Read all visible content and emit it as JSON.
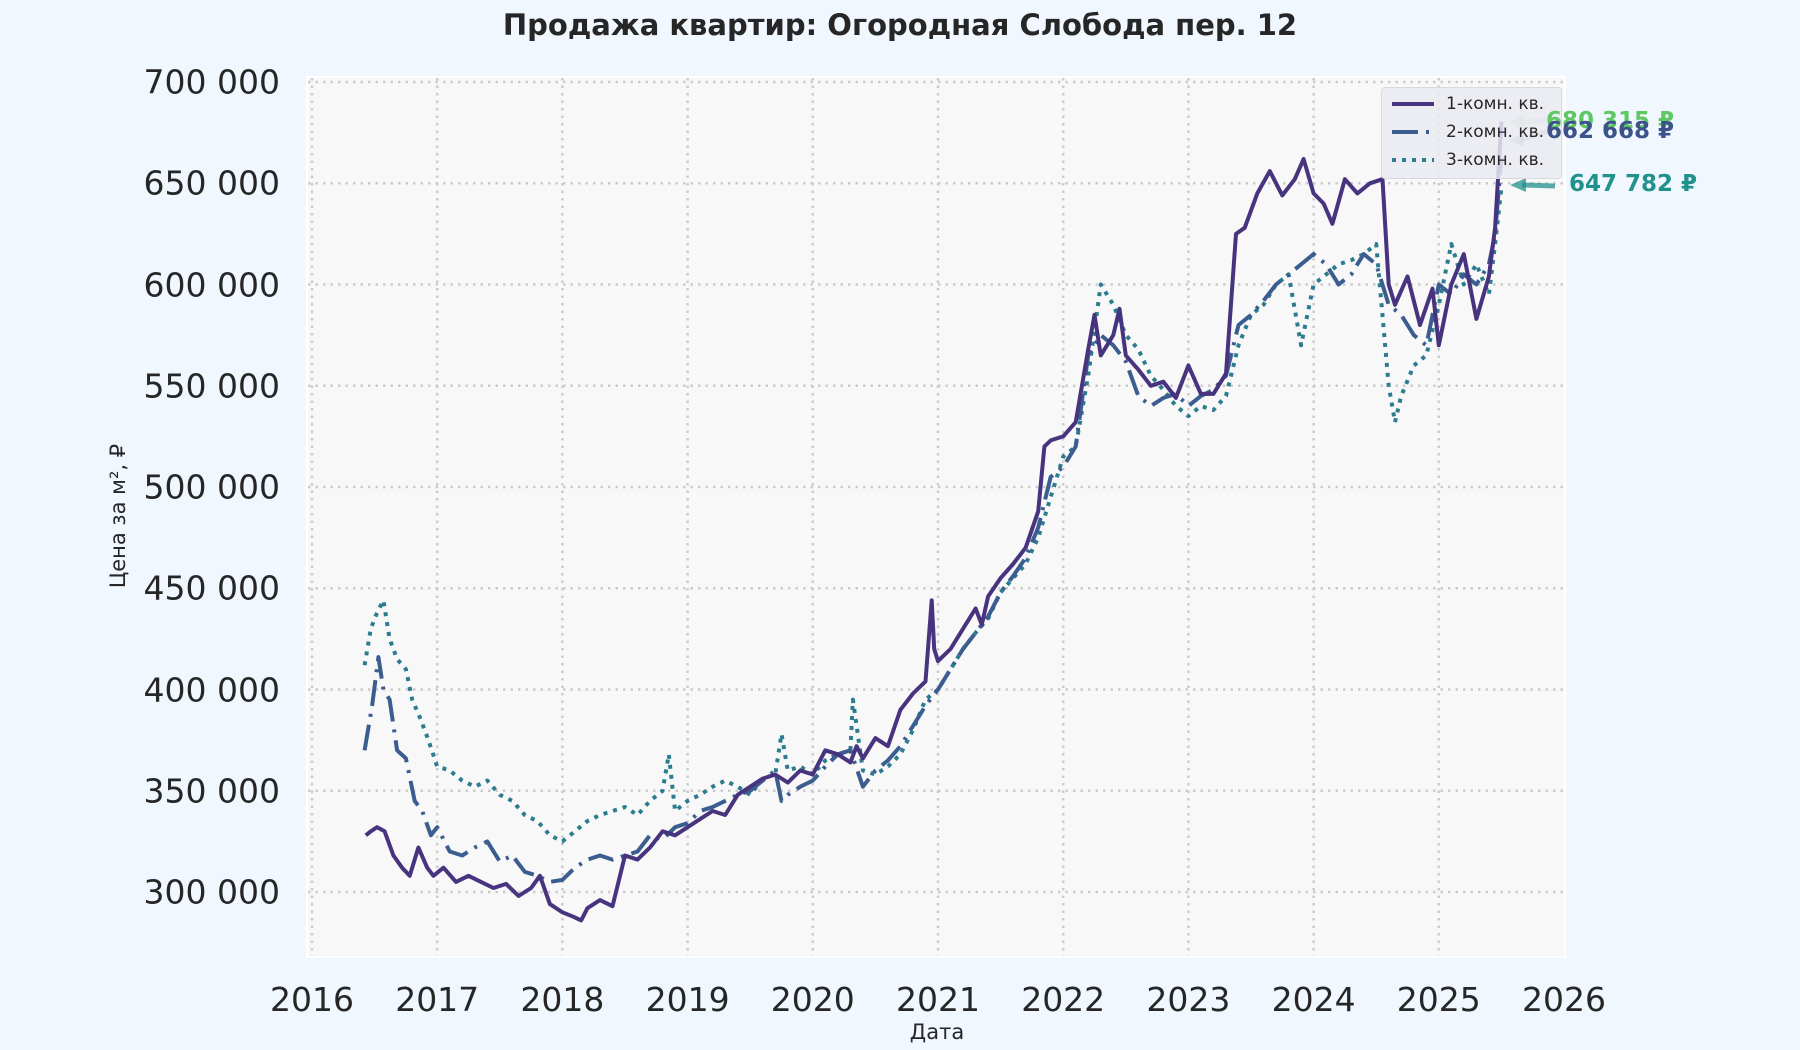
{
  "title": "Продажа квартир: Огородная Слобода пер. 12",
  "colors": {
    "figure_bg": "#f0f7ff",
    "plot_bg": "#f8f8f8",
    "grid": "#cccccc",
    "series_1": "#47337e",
    "series_2": "#3b5d8f",
    "series_3": "#2a7c8e",
    "anno_1": "#5ec962",
    "anno_2": "#3b528b",
    "anno_3": "#21918c"
  },
  "axes": {
    "xlabel": "Дата",
    "ylabel": "Цена за м², ₽",
    "yticks": [
      "700 000",
      "650 000",
      "600 000",
      "550 000",
      "500 000",
      "450 000",
      "400 000",
      "350 000",
      "300 000"
    ],
    "xticks": [
      "2016",
      "2017",
      "2018",
      "2019",
      "2020",
      "2021",
      "2022",
      "2023",
      "2024",
      "2025",
      "2026"
    ]
  },
  "legend": {
    "items": [
      "1-комн. кв.",
      "2-комн. кв.",
      "3-комн. кв."
    ]
  },
  "annotations": [
    {
      "label": "680 315 ₽",
      "series": "1-комн. кв."
    },
    {
      "label": "662 668 ₽",
      "series": "2-комн. кв."
    },
    {
      "label": "647 782 ₽",
      "series": "3-комн. кв."
    }
  ],
  "chart_data": {
    "type": "line",
    "title": "Продажа квартир: Огородная Слобода пер. 12",
    "xlabel": "Дата",
    "ylabel": "Цена за м², ₽",
    "xlim": [
      2016,
      2026
    ],
    "ylim": [
      265000,
      700000
    ],
    "grid": true,
    "legend_position": "upper right",
    "series": [
      {
        "name": "1-комн. кв.",
        "style": "solid",
        "x": [
          2016.43,
          2016.47,
          2016.52,
          2016.58,
          2016.65,
          2016.72,
          2016.78,
          2016.85,
          2016.92,
          2016.97,
          2017.05,
          2017.15,
          2017.25,
          2017.35,
          2017.45,
          2017.55,
          2017.65,
          2017.75,
          2017.82,
          2017.9,
          2018.0,
          2018.08,
          2018.15,
          2018.2,
          2018.3,
          2018.4,
          2018.5,
          2018.6,
          2018.7,
          2018.8,
          2018.9,
          2019.0,
          2019.1,
          2019.2,
          2019.3,
          2019.4,
          2019.5,
          2019.6,
          2019.7,
          2019.8,
          2019.9,
          2020.0,
          2020.1,
          2020.2,
          2020.3,
          2020.35,
          2020.4,
          2020.5,
          2020.6,
          2020.7,
          2020.8,
          2020.9,
          2020.95,
          2020.97,
          2021.0,
          2021.1,
          2021.2,
          2021.3,
          2021.35,
          2021.4,
          2021.5,
          2021.6,
          2021.7,
          2021.8,
          2021.85,
          2021.9,
          2022.0,
          2022.1,
          2022.2,
          2022.25,
          2022.3,
          2022.4,
          2022.45,
          2022.5,
          2022.6,
          2022.7,
          2022.8,
          2022.9,
          2023.0,
          2023.1,
          2023.2,
          2023.3,
          2023.38,
          2023.45,
          2023.55,
          2023.65,
          2023.75,
          2023.85,
          2023.92,
          2024.0,
          2024.08,
          2024.15,
          2024.25,
          2024.35,
          2024.45,
          2024.55,
          2024.6,
          2024.65,
          2024.75,
          2024.85,
          2024.95,
          2025.0,
          2025.1,
          2025.2,
          2025.3,
          2025.4,
          2025.45,
          2025.5
        ],
        "values": [
          328000,
          330000,
          332000,
          330000,
          318000,
          312000,
          308000,
          322000,
          312000,
          308000,
          312000,
          305000,
          308000,
          305000,
          302000,
          304000,
          298000,
          302000,
          308000,
          294000,
          290000,
          288000,
          286000,
          292000,
          296000,
          293000,
          318000,
          316000,
          322000,
          330000,
          328000,
          332000,
          336000,
          340000,
          338000,
          348000,
          352000,
          356000,
          358000,
          354000,
          360000,
          358000,
          370000,
          368000,
          364000,
          372000,
          366000,
          376000,
          372000,
          390000,
          398000,
          404000,
          444000,
          420000,
          414000,
          420000,
          430000,
          440000,
          432000,
          446000,
          455000,
          462000,
          470000,
          488000,
          520000,
          523000,
          525000,
          532000,
          568000,
          585000,
          565000,
          575000,
          588000,
          565000,
          558000,
          550000,
          552000,
          544000,
          560000,
          546000,
          546000,
          556000,
          625000,
          628000,
          645000,
          656000,
          644000,
          652000,
          662000,
          645000,
          640000,
          630000,
          652000,
          645000,
          650000,
          652000,
          600000,
          590000,
          604000,
          580000,
          598000,
          570000,
          600000,
          615000,
          583000,
          604000,
          628000,
          680315
        ]
      },
      {
        "name": "2-комн. кв.",
        "style": "dashdot",
        "x": [
          2016.42,
          2016.48,
          2016.53,
          2016.57,
          2016.62,
          2016.68,
          2016.75,
          2016.82,
          2016.88,
          2016.95,
          2017.0,
          2017.1,
          2017.2,
          2017.3,
          2017.4,
          2017.5,
          2017.6,
          2017.7,
          2017.8,
          2017.9,
          2018.0,
          2018.1,
          2018.2,
          2018.3,
          2018.4,
          2018.5,
          2018.6,
          2018.7,
          2018.8,
          2018.9,
          2019.0,
          2019.1,
          2019.2,
          2019.3,
          2019.4,
          2019.5,
          2019.6,
          2019.7,
          2019.75,
          2019.8,
          2019.9,
          2020.0,
          2020.1,
          2020.2,
          2020.3,
          2020.4,
          2020.5,
          2020.6,
          2020.7,
          2020.8,
          2020.9,
          2021.0,
          2021.1,
          2021.2,
          2021.3,
          2021.4,
          2021.5,
          2021.6,
          2021.7,
          2021.8,
          2021.9,
          2022.0,
          2022.1,
          2022.2,
          2022.3,
          2022.4,
          2022.5,
          2022.6,
          2022.7,
          2022.8,
          2022.9,
          2023.0,
          2023.1,
          2023.2,
          2023.3,
          2023.4,
          2023.5,
          2023.6,
          2023.7,
          2023.8,
          2023.9,
          2024.0,
          2024.1,
          2024.2,
          2024.3,
          2024.4,
          2024.5,
          2024.6,
          2024.7,
          2024.8,
          2024.9,
          2025.0,
          2025.1,
          2025.2,
          2025.3,
          2025.4,
          2025.45,
          2025.5
        ],
        "values": [
          370000,
          392000,
          416000,
          400000,
          395000,
          370000,
          366000,
          345000,
          340000,
          328000,
          332000,
          320000,
          318000,
          322000,
          325000,
          315000,
          318000,
          310000,
          308000,
          305000,
          306000,
          312000,
          316000,
          318000,
          316000,
          318000,
          320000,
          328000,
          326000,
          332000,
          334000,
          340000,
          342000,
          345000,
          348000,
          350000,
          355000,
          360000,
          345000,
          348000,
          352000,
          355000,
          362000,
          368000,
          370000,
          352000,
          360000,
          365000,
          372000,
          382000,
          392000,
          400000,
          410000,
          420000,
          428000,
          436000,
          448000,
          456000,
          465000,
          480000,
          505000,
          510000,
          520000,
          565000,
          575000,
          570000,
          562000,
          545000,
          540000,
          544000,
          546000,
          540000,
          545000,
          548000,
          555000,
          580000,
          585000,
          592000,
          600000,
          605000,
          610000,
          615000,
          610000,
          600000,
          605000,
          615000,
          610000,
          590000,
          585000,
          575000,
          570000,
          600000,
          595000,
          605000,
          600000,
          610000,
          625000,
          662668
        ]
      },
      {
        "name": "3-комн. кв.",
        "style": "dotted",
        "x": [
          2016.42,
          2016.47,
          2016.52,
          2016.57,
          2016.62,
          2016.68,
          2016.75,
          2016.8,
          2016.87,
          2016.93,
          2017.0,
          2017.1,
          2017.2,
          2017.3,
          2017.4,
          2017.5,
          2017.6,
          2017.7,
          2017.8,
          2017.9,
          2018.0,
          2018.1,
          2018.2,
          2018.3,
          2018.4,
          2018.5,
          2018.6,
          2018.7,
          2018.8,
          2018.85,
          2018.9,
          2019.0,
          2019.1,
          2019.2,
          2019.3,
          2019.4,
          2019.5,
          2019.6,
          2019.7,
          2019.75,
          2019.8,
          2019.9,
          2020.0,
          2020.1,
          2020.2,
          2020.3,
          2020.32,
          2020.4,
          2020.5,
          2020.6,
          2020.7,
          2020.8,
          2020.9,
          2021.0,
          2021.1,
          2021.2,
          2021.3,
          2021.4,
          2021.5,
          2021.6,
          2021.7,
          2021.8,
          2021.9,
          2022.0,
          2022.1,
          2022.2,
          2022.3,
          2022.4,
          2022.5,
          2022.6,
          2022.7,
          2022.8,
          2022.9,
          2023.0,
          2023.1,
          2023.2,
          2023.3,
          2023.4,
          2023.5,
          2023.6,
          2023.7,
          2023.8,
          2023.9,
          2024.0,
          2024.1,
          2024.2,
          2024.3,
          2024.4,
          2024.5,
          2024.6,
          2024.65,
          2024.7,
          2024.8,
          2024.9,
          2025.0,
          2025.1,
          2025.2,
          2025.3,
          2025.4,
          2025.45,
          2025.5
        ],
        "values": [
          412000,
          430000,
          438000,
          444000,
          425000,
          415000,
          410000,
          395000,
          385000,
          375000,
          362000,
          360000,
          355000,
          352000,
          355000,
          348000,
          345000,
          338000,
          335000,
          328000,
          325000,
          330000,
          335000,
          338000,
          340000,
          342000,
          338000,
          345000,
          350000,
          368000,
          340000,
          345000,
          348000,
          352000,
          355000,
          352000,
          348000,
          356000,
          358000,
          378000,
          360000,
          362000,
          358000,
          365000,
          368000,
          370000,
          395000,
          360000,
          358000,
          362000,
          368000,
          380000,
          395000,
          400000,
          410000,
          420000,
          428000,
          435000,
          448000,
          455000,
          462000,
          475000,
          495000,
          515000,
          520000,
          555000,
          600000,
          590000,
          575000,
          568000,
          555000,
          548000,
          540000,
          535000,
          540000,
          538000,
          545000,
          570000,
          585000,
          590000,
          600000,
          605000,
          570000,
          600000,
          605000,
          610000,
          612000,
          615000,
          620000,
          550000,
          532000,
          545000,
          560000,
          565000,
          590000,
          620000,
          600000,
          610000,
          595000,
          620000,
          647782
        ]
      }
    ]
  }
}
